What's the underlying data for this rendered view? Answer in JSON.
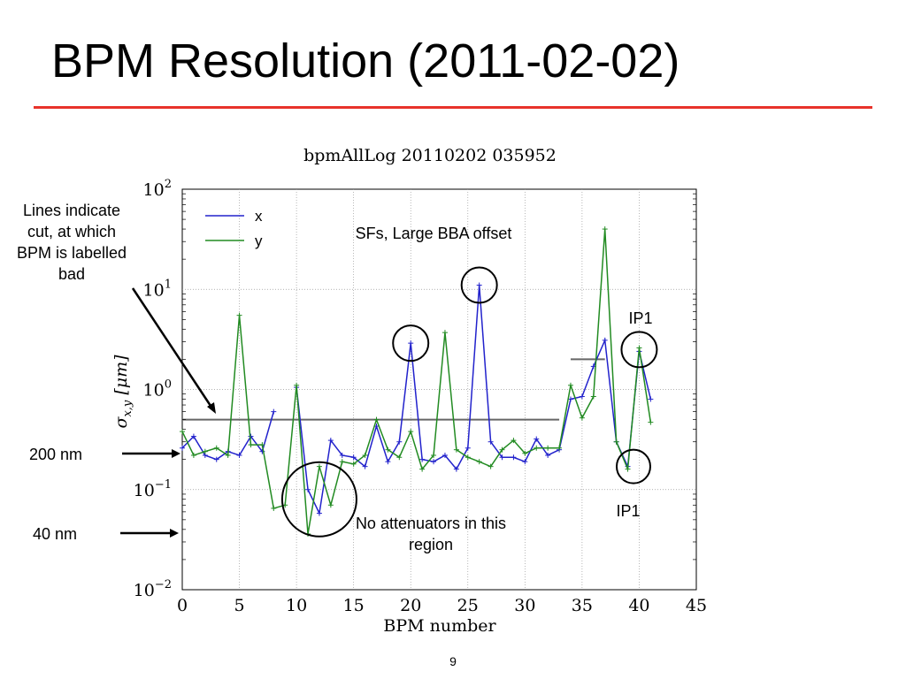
{
  "slide": {
    "title": "BPM Resolution (2011-02-02)",
    "page_number": "9",
    "accent_color": "#e8332b"
  },
  "notes": {
    "cut_lines": [
      "Lines indicate",
      "cut, at which",
      "BPM is labelled",
      "bad"
    ],
    "nm200": "200 nm",
    "nm40": "40 nm",
    "sfs": "SFs, Large BBA offset",
    "no_attenuators": [
      "No attenuators in this",
      "region"
    ],
    "ip1_top": "IP1",
    "ip1_bottom": "IP1"
  },
  "chart_data": {
    "type": "line",
    "title": "bpmAllLog 20110202 035952",
    "xlabel": "BPM number",
    "ylabel": "σx,y [μm]",
    "xlim": [
      0,
      45
    ],
    "ylim": [
      0.01,
      100
    ],
    "yscale": "log",
    "grid": true,
    "legend": "top-left",
    "x_ticks": [
      0,
      5,
      10,
      15,
      20,
      25,
      30,
      35,
      40,
      45
    ],
    "y_ticks": [
      0.01,
      0.1,
      1,
      10,
      100
    ],
    "y_tick_labels": [
      {
        "base": "10",
        "exp": "−2"
      },
      {
        "base": "10",
        "exp": "−1"
      },
      {
        "base": "10",
        "exp": "0"
      },
      {
        "base": "10",
        "exp": "1"
      },
      {
        "base": "10",
        "exp": "2"
      }
    ],
    "series": [
      {
        "name": "x",
        "color": "#2222cc",
        "segments": [
          {
            "x": [
              0,
              1,
              2,
              3,
              4,
              5,
              6,
              7,
              8
            ],
            "y": [
              0.26,
              0.34,
              0.22,
              0.2,
              0.24,
              0.22,
              0.34,
              0.24,
              0.6
            ]
          },
          {
            "x": [
              10,
              11,
              12,
              13,
              14,
              15,
              16,
              17,
              18,
              19,
              20,
              21,
              22,
              23,
              24,
              25,
              26,
              27,
              28,
              29,
              30,
              31,
              32,
              33,
              34,
              35,
              36,
              37,
              38,
              39,
              40,
              41
            ],
            "y": [
              1.05,
              0.1,
              0.058,
              0.31,
              0.22,
              0.21,
              0.17,
              0.43,
              0.19,
              0.3,
              2.9,
              0.2,
              0.19,
              0.22,
              0.16,
              0.26,
              11.0,
              0.3,
              0.21,
              0.21,
              0.19,
              0.32,
              0.22,
              0.25,
              0.8,
              0.85,
              1.7,
              3.1,
              0.3,
              0.17,
              2.4,
              0.8
            ]
          }
        ]
      },
      {
        "name": "y",
        "color": "#228b22",
        "segments": [
          {
            "x": [
              0,
              1,
              2,
              3,
              4,
              5,
              6,
              7,
              8,
              9,
              10,
              11,
              12,
              13,
              14,
              15,
              16,
              17,
              18,
              19,
              20,
              21,
              22,
              23,
              24,
              25,
              26,
              27,
              28,
              29,
              30,
              31,
              32,
              33,
              34,
              35,
              36,
              37,
              38,
              39,
              40,
              41
            ],
            "y": [
              0.38,
              0.22,
              0.24,
              0.26,
              0.22,
              5.5,
              0.28,
              0.28,
              0.065,
              0.07,
              1.1,
              0.036,
              0.17,
              0.07,
              0.19,
              0.18,
              0.22,
              0.5,
              0.25,
              0.21,
              0.38,
              0.16,
              0.22,
              3.7,
              0.25,
              0.21,
              0.19,
              0.17,
              0.25,
              0.31,
              0.23,
              0.26,
              0.26,
              0.26,
              1.1,
              0.52,
              0.85,
              40.0,
              0.3,
              0.16,
              2.6,
              0.47
            ]
          }
        ]
      }
    ],
    "cut_lines": [
      {
        "x1": 0,
        "x2": 33,
        "y": 0.5,
        "color": "#666666"
      },
      {
        "x1": 34,
        "x2": 37,
        "y": 2.0,
        "color": "#666666"
      }
    ],
    "markers": [
      {
        "x": 12,
        "y": 0.08,
        "label": "circle-no-attenuators",
        "r": 42
      },
      {
        "x": 20,
        "y": 2.9,
        "label": "circle-bpm20",
        "r": 20
      },
      {
        "x": 26,
        "y": 11.0,
        "label": "circle-bpm26",
        "r": 20
      },
      {
        "x": 40,
        "y": 2.5,
        "label": "circle-ip1-top",
        "r": 20
      },
      {
        "x": 39.5,
        "y": 0.17,
        "label": "circle-ip1-bottom",
        "r": 19
      }
    ]
  }
}
